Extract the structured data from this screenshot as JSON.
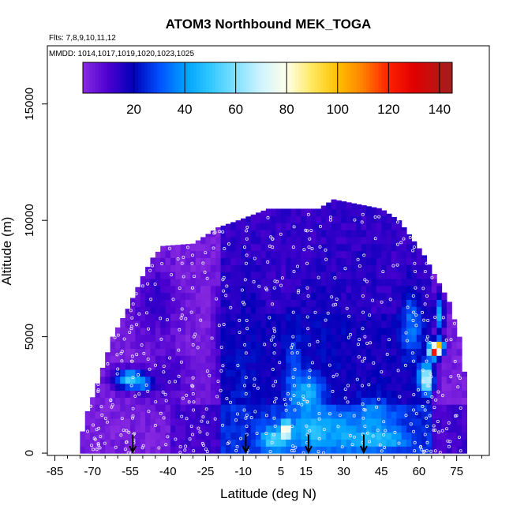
{
  "chart_data": {
    "type": "heatmap",
    "title": "ATOM3 Northbound MEK_TOGA",
    "subtitle_flights": "Flts: 7,8,9,10,11,12",
    "subtitle_dates": "MMDD: 1014,1017,1019,1020,1023,1025",
    "xlabel": "Latitude (deg N)",
    "ylabel": "Altitude (m)",
    "xlim": [
      -88,
      88
    ],
    "ylim": [
      -100,
      17500
    ],
    "x_ticks": [
      -85,
      -70,
      -55,
      -40,
      -25,
      -10,
      5,
      15,
      30,
      45,
      60,
      75
    ],
    "x_minor_ticks": [
      -80,
      -75,
      -65,
      -60,
      -50,
      -45,
      -35,
      -30,
      -20,
      -15,
      -5,
      0,
      10,
      20,
      25,
      35,
      40,
      50,
      55,
      65,
      70,
      80,
      85
    ],
    "y_ticks": [
      0,
      5000,
      10000,
      15000
    ],
    "y_tick_labels": [
      "0",
      "5000",
      "10000",
      "15000"
    ],
    "colorbar": {
      "min": 0,
      "max": 145,
      "ticks": [
        20,
        40,
        60,
        80,
        100,
        120,
        140
      ],
      "tick_labels": [
        "20",
        "40",
        "60",
        "80",
        "100",
        "120",
        "140"
      ],
      "color_stops": [
        {
          "v": 0,
          "c": "#8a2be2"
        },
        {
          "v": 10,
          "c": "#4b00d0"
        },
        {
          "v": 20,
          "c": "#0000b8"
        },
        {
          "v": 30,
          "c": "#0050ff"
        },
        {
          "v": 40,
          "c": "#00a0ff"
        },
        {
          "v": 50,
          "c": "#30c8ff"
        },
        {
          "v": 60,
          "c": "#80e0ff"
        },
        {
          "v": 70,
          "c": "#d0f4ff"
        },
        {
          "v": 80,
          "c": "#ffffe8"
        },
        {
          "v": 90,
          "c": "#ffe860"
        },
        {
          "v": 100,
          "c": "#ffc000"
        },
        {
          "v": 110,
          "c": "#ff8000"
        },
        {
          "v": 120,
          "c": "#ff2000"
        },
        {
          "v": 130,
          "c": "#e00000"
        },
        {
          "v": 145,
          "c": "#a02020"
        }
      ]
    },
    "colors": {
      "background_fill": "#8a2be2",
      "marker_stroke": "#e8e8ff",
      "arrow": "#000000"
    },
    "altitude_envelope": [
      {
        "lat": -75,
        "top": 500
      },
      {
        "lat": -72,
        "top": 1800
      },
      {
        "lat": -68,
        "top": 3000
      },
      {
        "lat": -62,
        "top": 5000
      },
      {
        "lat": -56,
        "top": 6200
      },
      {
        "lat": -50,
        "top": 7600
      },
      {
        "lat": -46,
        "top": 8400
      },
      {
        "lat": -42,
        "top": 8900
      },
      {
        "lat": -30,
        "top": 9000
      },
      {
        "lat": -20,
        "top": 9700
      },
      {
        "lat": -12,
        "top": 10000
      },
      {
        "lat": 0,
        "top": 10500
      },
      {
        "lat": 20,
        "top": 10500
      },
      {
        "lat": 26,
        "top": 10900
      },
      {
        "lat": 45,
        "top": 10500
      },
      {
        "lat": 52,
        "top": 10000
      },
      {
        "lat": 56,
        "top": 9400
      },
      {
        "lat": 62,
        "top": 8500
      },
      {
        "lat": 67,
        "top": 7500
      },
      {
        "lat": 72,
        "top": 6500
      },
      {
        "lat": 76,
        "top": 5000
      },
      {
        "lat": 78,
        "top": 3500
      },
      {
        "lat": 79,
        "top": 800
      }
    ],
    "feature_blobs": [
      {
        "lat": -55,
        "alt": 3200,
        "dlat": 6,
        "dalt": 400,
        "value": 52
      },
      {
        "lat": -50,
        "alt": 3000,
        "dlat": 4,
        "dalt": 350,
        "value": 40
      },
      {
        "lat": -45,
        "alt": 6500,
        "dlat": 9,
        "dalt": 1500,
        "value": 14
      },
      {
        "lat": -40,
        "alt": 3200,
        "dlat": 8,
        "dalt": 1200,
        "value": 13
      },
      {
        "lat": -18,
        "alt": 5200,
        "dlat": 3,
        "dalt": 2000,
        "value": 16
      },
      {
        "lat": -10,
        "alt": 2500,
        "dlat": 8,
        "dalt": 2600,
        "value": 22
      },
      {
        "lat": -8,
        "alt": 6500,
        "dlat": 6,
        "dalt": 1500,
        "value": 18
      },
      {
        "lat": 2,
        "alt": 600,
        "dlat": 5,
        "dalt": 500,
        "value": 55
      },
      {
        "lat": 7,
        "alt": 1000,
        "dlat": 2,
        "dalt": 400,
        "value": 95
      },
      {
        "lat": 10,
        "alt": 3000,
        "dlat": 4,
        "dalt": 2500,
        "value": 30
      },
      {
        "lat": 16,
        "alt": 2600,
        "dlat": 6,
        "dalt": 800,
        "value": 45
      },
      {
        "lat": 18,
        "alt": 1000,
        "dlat": 8,
        "dalt": 700,
        "value": 50
      },
      {
        "lat": 23,
        "alt": 5000,
        "dlat": 10,
        "dalt": 2500,
        "value": 20
      },
      {
        "lat": 30,
        "alt": 900,
        "dlat": 10,
        "dalt": 800,
        "value": 42
      },
      {
        "lat": 42,
        "alt": 1500,
        "dlat": 8,
        "dalt": 900,
        "value": 38
      },
      {
        "lat": 44,
        "alt": 600,
        "dlat": 10,
        "dalt": 400,
        "value": 50
      },
      {
        "lat": 40,
        "alt": 8000,
        "dlat": 6,
        "dalt": 1200,
        "value": 16
      },
      {
        "lat": 57,
        "alt": 5500,
        "dlat": 4,
        "dalt": 1500,
        "value": 35
      },
      {
        "lat": 63,
        "alt": 3200,
        "dlat": 3,
        "dalt": 600,
        "value": 72
      },
      {
        "lat": 66,
        "alt": 4400,
        "dlat": 2,
        "dalt": 300,
        "value": 125
      },
      {
        "lat": 68,
        "alt": 4600,
        "dlat": 2,
        "dalt": 300,
        "value": 105
      },
      {
        "lat": 68,
        "alt": 6000,
        "dlat": 2,
        "dalt": 800,
        "value": 45
      }
    ],
    "sounding_arrows": [
      {
        "lat": -54,
        "alt": 800
      },
      {
        "lat": -9,
        "alt": 800
      },
      {
        "lat": 16,
        "alt": 800
      },
      {
        "lat": 38,
        "alt": 800
      }
    ]
  }
}
